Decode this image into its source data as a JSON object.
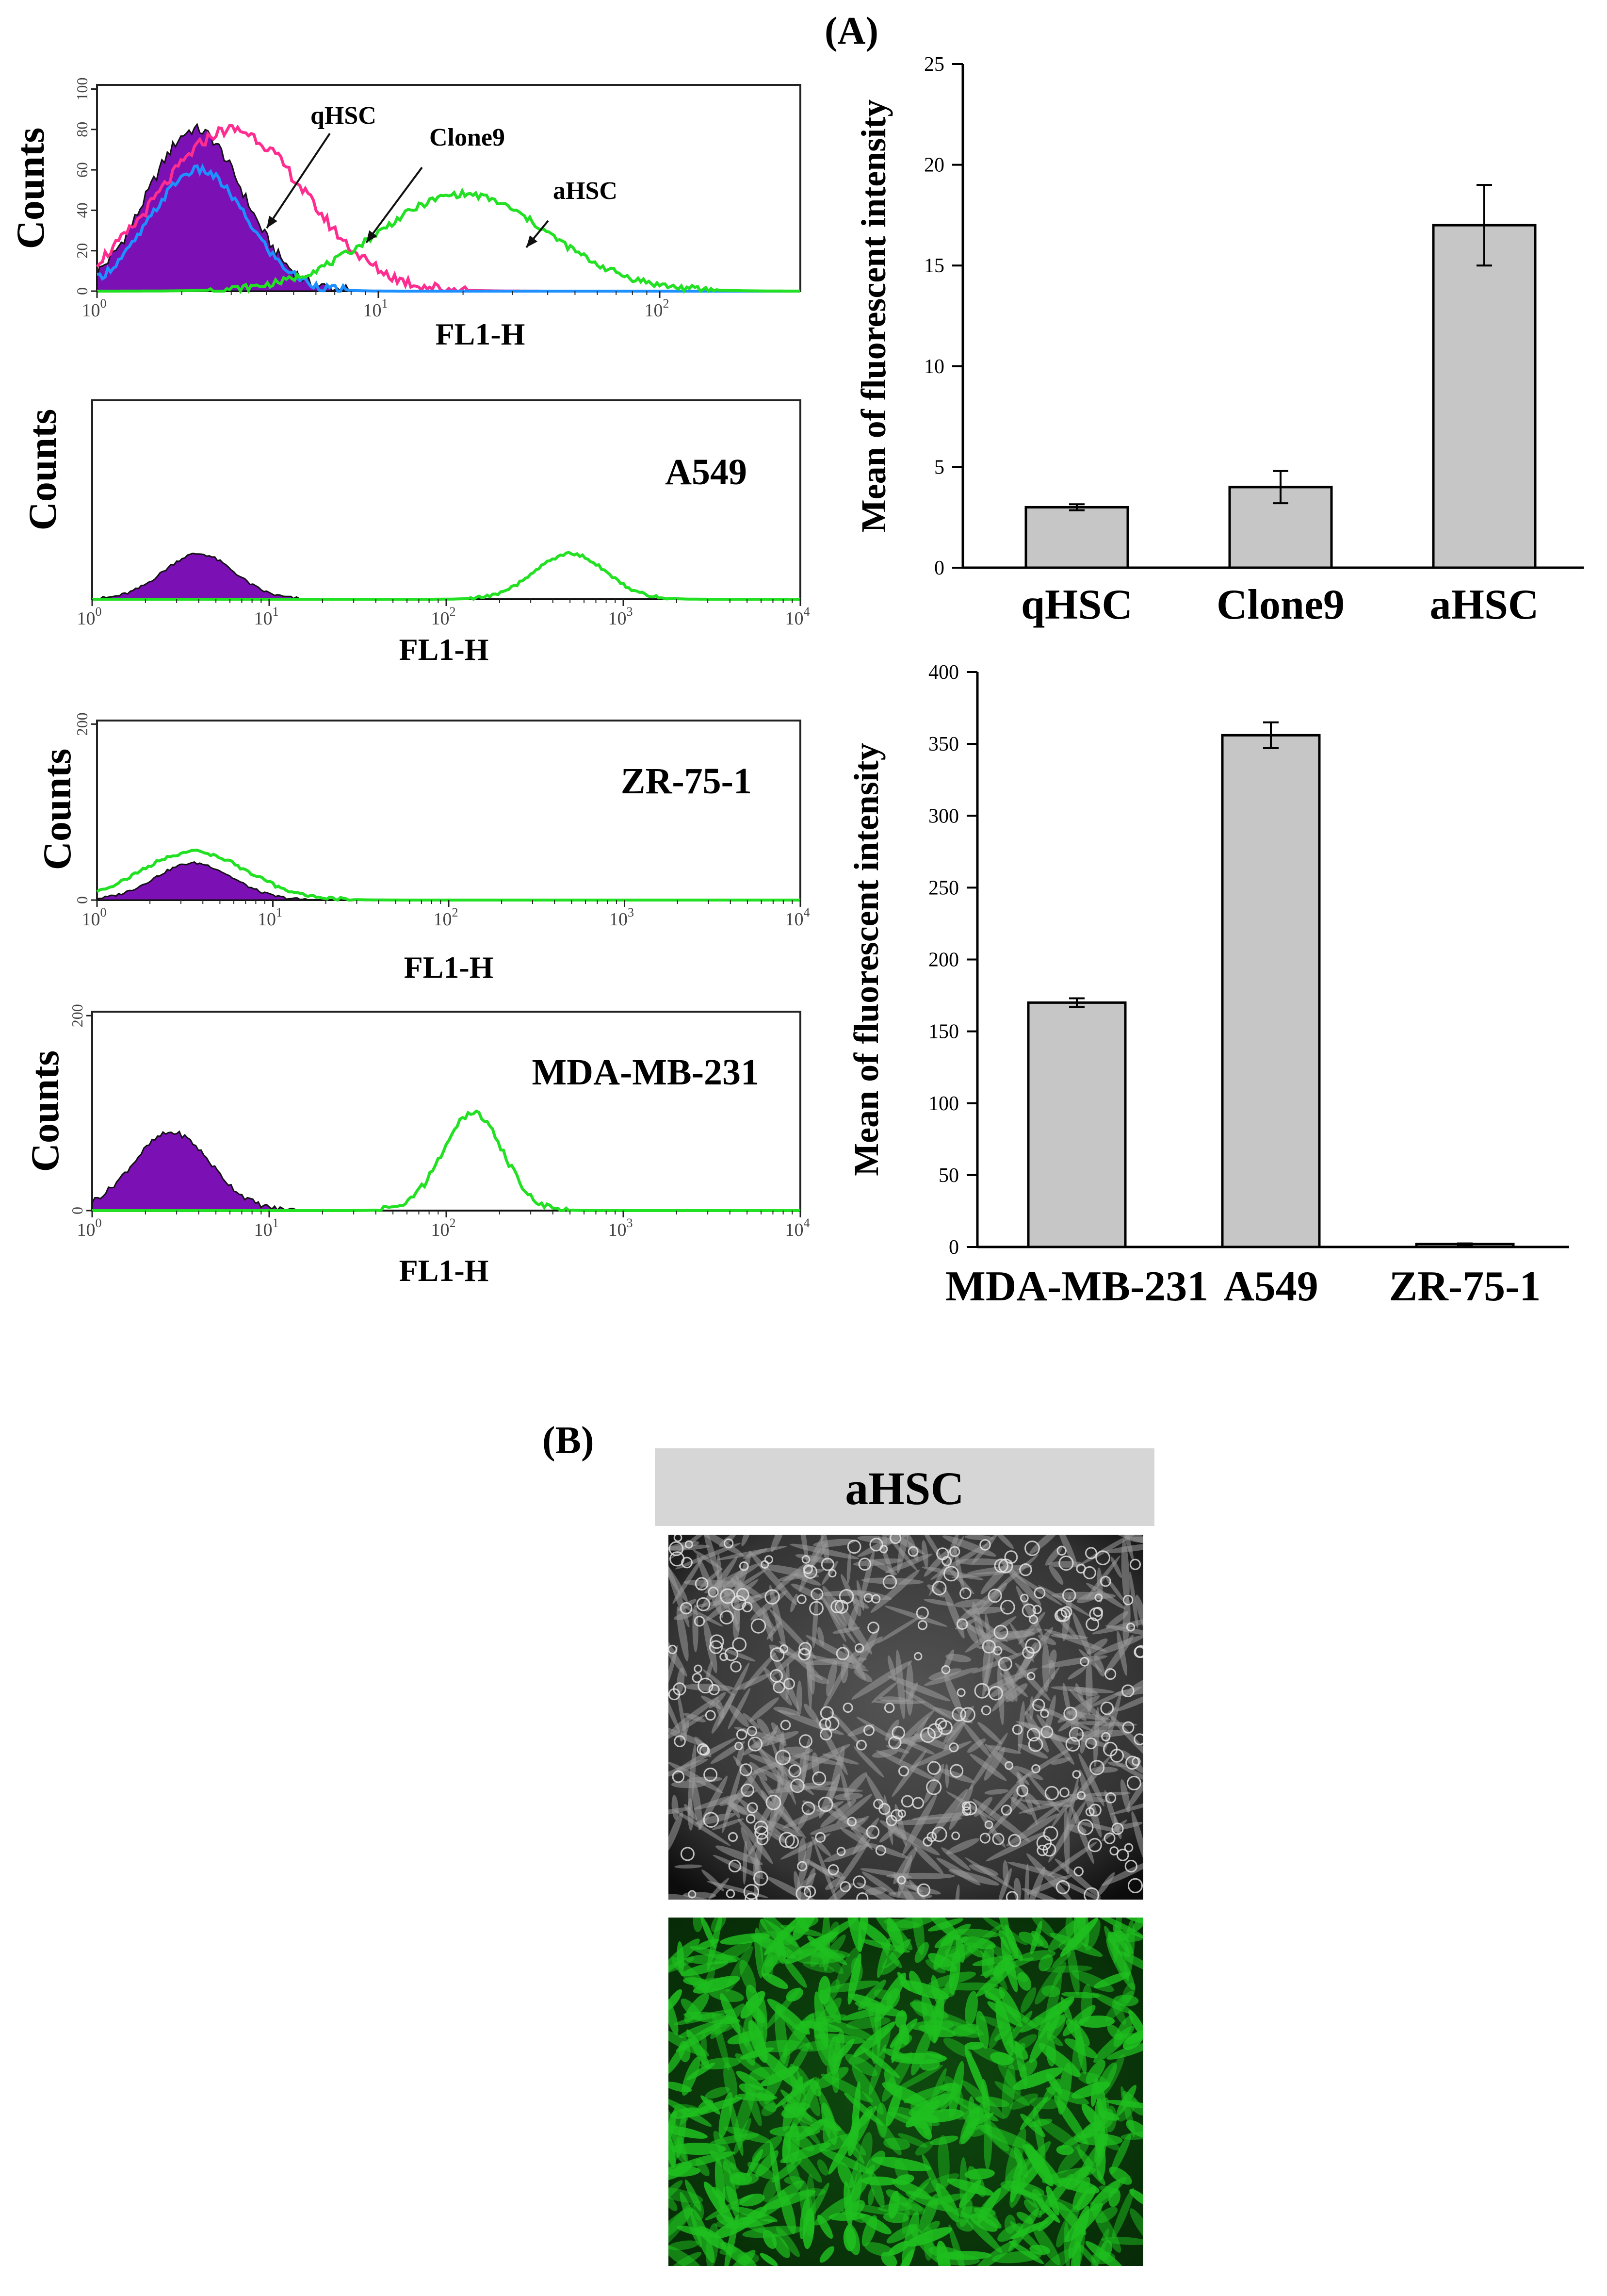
{
  "panels": {
    "a": "(A)",
    "b": "(B)"
  },
  "colors": {
    "control_fill": "#7b10b5",
    "qHSC": "#ff2d8f",
    "Clone9": "#1e90ff",
    "aHSC": "#22e022",
    "test": "#22e022",
    "bar": "#c6c6c6",
    "micro_header": "#d6d6d6",
    "fluor": "#1fbf1f"
  },
  "histograms": [
    {
      "id": "hsc",
      "ylabel": "Counts",
      "xlabel": "FL1-H",
      "title": "",
      "x_ticks": [
        {
          "base": "10",
          "exp": "0"
        },
        {
          "base": "10",
          "exp": "1"
        },
        {
          "base": "10",
          "exp": "2"
        }
      ],
      "x_decades": 2.5,
      "y_ticks": [
        "0",
        "20",
        "40",
        "60",
        "80",
        "100"
      ],
      "ymax": 100,
      "annotations": [
        "qHSC",
        "Clone9",
        "aHSC"
      ],
      "control": {
        "peak_log": 0.35,
        "sigma": 0.17,
        "height": 80
      },
      "curves": [
        {
          "name": "qHSC",
          "color_key": "qHSC",
          "peak_log": 0.48,
          "sigma": 0.26,
          "height": 80
        },
        {
          "name": "Clone9",
          "color_key": "Clone9",
          "peak_log": 0.36,
          "sigma": 0.17,
          "height": 60
        },
        {
          "name": "aHSC",
          "color_key": "aHSC",
          "peak_log": 1.3,
          "sigma": 0.3,
          "height": 48
        }
      ]
    },
    {
      "id": "a549",
      "ylabel": "Counts",
      "xlabel": "FL1-H",
      "title": "A549",
      "x_ticks": [
        {
          "base": "10",
          "exp": "0"
        },
        {
          "base": "10",
          "exp": "1"
        },
        {
          "base": "10",
          "exp": "2"
        },
        {
          "base": "10",
          "exp": "3"
        },
        {
          "base": "10",
          "exp": "4"
        }
      ],
      "x_decades": 4,
      "y_ticks": [],
      "ymax": 120,
      "annotations": [],
      "control": {
        "peak_log": 0.6,
        "sigma": 0.2,
        "height": 28
      },
      "curves": [
        {
          "name": "A549",
          "color_key": "test",
          "peak_log": 2.7,
          "sigma": 0.2,
          "height": 28
        }
      ]
    },
    {
      "id": "zr751",
      "ylabel": "Counts",
      "xlabel": "FL1-H",
      "title": "ZR-75-1",
      "x_ticks": [
        {
          "base": "10",
          "exp": "0"
        },
        {
          "base": "10",
          "exp": "1"
        },
        {
          "base": "10",
          "exp": "2"
        },
        {
          "base": "10",
          "exp": "3"
        },
        {
          "base": "10",
          "exp": "4"
        }
      ],
      "x_decades": 4,
      "y_ticks": [
        "0",
        "200"
      ],
      "ymax": 200,
      "annotations": [],
      "control": {
        "peak_log": 0.55,
        "sigma": 0.22,
        "height": 42
      },
      "curves": [
        {
          "name": "ZR-75-1",
          "color_key": "test",
          "peak_log": 0.55,
          "sigma": 0.3,
          "height": 55
        }
      ]
    },
    {
      "id": "mdamb231",
      "ylabel": "Counts",
      "xlabel": "FL1-H",
      "title": "MDA-MB-231",
      "x_ticks": [
        {
          "base": "10",
          "exp": "0"
        },
        {
          "base": "10",
          "exp": "1"
        },
        {
          "base": "10",
          "exp": "2"
        },
        {
          "base": "10",
          "exp": "3"
        },
        {
          "base": "10",
          "exp": "4"
        }
      ],
      "x_decades": 4,
      "y_ticks": [
        "0",
        "200"
      ],
      "ymax": 200,
      "annotations": [],
      "control": {
        "peak_log": 0.45,
        "sigma": 0.22,
        "height": 80
      },
      "curves": [
        {
          "name": "MDA-MB-231",
          "color_key": "test",
          "peak_log": 2.15,
          "sigma": 0.17,
          "height": 100
        }
      ]
    }
  ],
  "chart_data": [
    {
      "type": "bar",
      "title": "",
      "xlabel": "",
      "ylabel": "Mean of fluorescent intensity",
      "categories": [
        "qHSC",
        "Clone9",
        "aHSC"
      ],
      "values": [
        3,
        4,
        17
      ],
      "errors": [
        0.15,
        0.8,
        2
      ],
      "ylim": [
        0,
        25
      ],
      "y_ticks": [
        "0",
        "5",
        "10",
        "15",
        "20",
        "25"
      ],
      "grid": false
    },
    {
      "type": "bar",
      "title": "",
      "xlabel": "",
      "ylabel": "Mean of fluorescent intensity",
      "categories": [
        "MDA-MB-231",
        "A549",
        "ZR-75-1"
      ],
      "values": [
        170,
        356,
        2
      ],
      "errors": [
        3,
        9,
        0.5
      ],
      "ylim": [
        0,
        400
      ],
      "y_ticks": [
        "0",
        "50",
        "100",
        "150",
        "200",
        "250",
        "300",
        "350",
        "400"
      ],
      "grid": false
    }
  ],
  "micrograph": {
    "title": "aHSC"
  }
}
